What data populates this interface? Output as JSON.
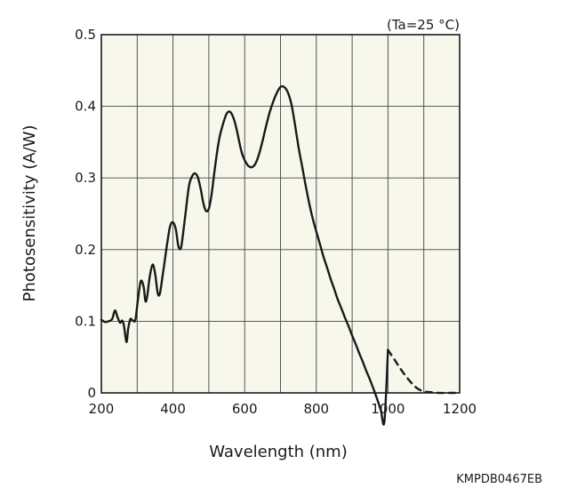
{
  "chart_data": {
    "type": "line",
    "title": "",
    "xlabel": "Wavelength (nm)",
    "ylabel": "Photosensitivity (A/W)",
    "xlim": [
      200,
      1200
    ],
    "ylim": [
      0,
      0.5
    ],
    "x_ticks": [
      200,
      400,
      600,
      800,
      1000,
      1200
    ],
    "x_tick_labels": [
      "200",
      "400",
      "600",
      "800",
      "1000",
      "1200"
    ],
    "x_grid": [
      200,
      300,
      400,
      500,
      600,
      700,
      800,
      900,
      1000,
      1100,
      1200
    ],
    "y_ticks": [
      0,
      0.1,
      0.2,
      0.3,
      0.4,
      0.5
    ],
    "y_tick_labels": [
      "0",
      "0.1",
      "0.2",
      "0.3",
      "0.4",
      "0.5"
    ],
    "grid": true,
    "annotation": "(Ta=25 °C)",
    "series": [
      {
        "style": "solid",
        "x": [
          200,
          210,
          220,
          230,
          238,
          245,
          252,
          258,
          263,
          270,
          275,
          281,
          288,
          295,
          302,
          310,
          318,
          323,
          328,
          335,
          343,
          350,
          357,
          363,
          370,
          378,
          385,
          392,
          400,
          408,
          415,
          422,
          428,
          436,
          445,
          455,
          463,
          470,
          478,
          485,
          492,
          500,
          508,
          515,
          522,
          530,
          540,
          550,
          560,
          570,
          578,
          585,
          592,
          600,
          610,
          620,
          630,
          640,
          650,
          660,
          670,
          680,
          690,
          700,
          710,
          720,
          730,
          738,
          745,
          752,
          760,
          770,
          780,
          790,
          800,
          810,
          820,
          830,
          840,
          850,
          860,
          870,
          880,
          890,
          900,
          910,
          920,
          930,
          940,
          950,
          960,
          970,
          980,
          990,
          1000
        ],
        "y": [
          0.102,
          0.099,
          0.1,
          0.103,
          0.115,
          0.106,
          0.098,
          0.101,
          0.094,
          0.071,
          0.09,
          0.103,
          0.101,
          0.102,
          0.13,
          0.156,
          0.148,
          0.128,
          0.135,
          0.162,
          0.179,
          0.167,
          0.14,
          0.138,
          0.16,
          0.188,
          0.213,
          0.233,
          0.238,
          0.228,
          0.205,
          0.202,
          0.222,
          0.255,
          0.29,
          0.304,
          0.306,
          0.3,
          0.283,
          0.264,
          0.254,
          0.257,
          0.278,
          0.306,
          0.333,
          0.357,
          0.376,
          0.39,
          0.392,
          0.382,
          0.367,
          0.35,
          0.335,
          0.325,
          0.317,
          0.315,
          0.32,
          0.333,
          0.352,
          0.373,
          0.392,
          0.407,
          0.419,
          0.427,
          0.427,
          0.42,
          0.404,
          0.382,
          0.36,
          0.338,
          0.317,
          0.29,
          0.265,
          0.243,
          0.225,
          0.208,
          0.19,
          0.175,
          0.159,
          0.145,
          0.13,
          0.118,
          0.105,
          0.093,
          0.08,
          0.068,
          0.055,
          0.043,
          0.03,
          0.018,
          0.005,
          -0.009,
          -0.024,
          -0.04,
          0.06
        ]
      },
      {
        "style": "dashed",
        "x": [
          1000,
          1020,
          1040,
          1060,
          1080,
          1100,
          1120,
          1140,
          1160,
          1180,
          1200
        ],
        "y": [
          0.06,
          0.045,
          0.03,
          0.017,
          0.007,
          0.002,
          0.001,
          0.0,
          0.0,
          0.0,
          0.0
        ]
      }
    ]
  },
  "footer": {
    "code": "KMPDB0467EB"
  }
}
